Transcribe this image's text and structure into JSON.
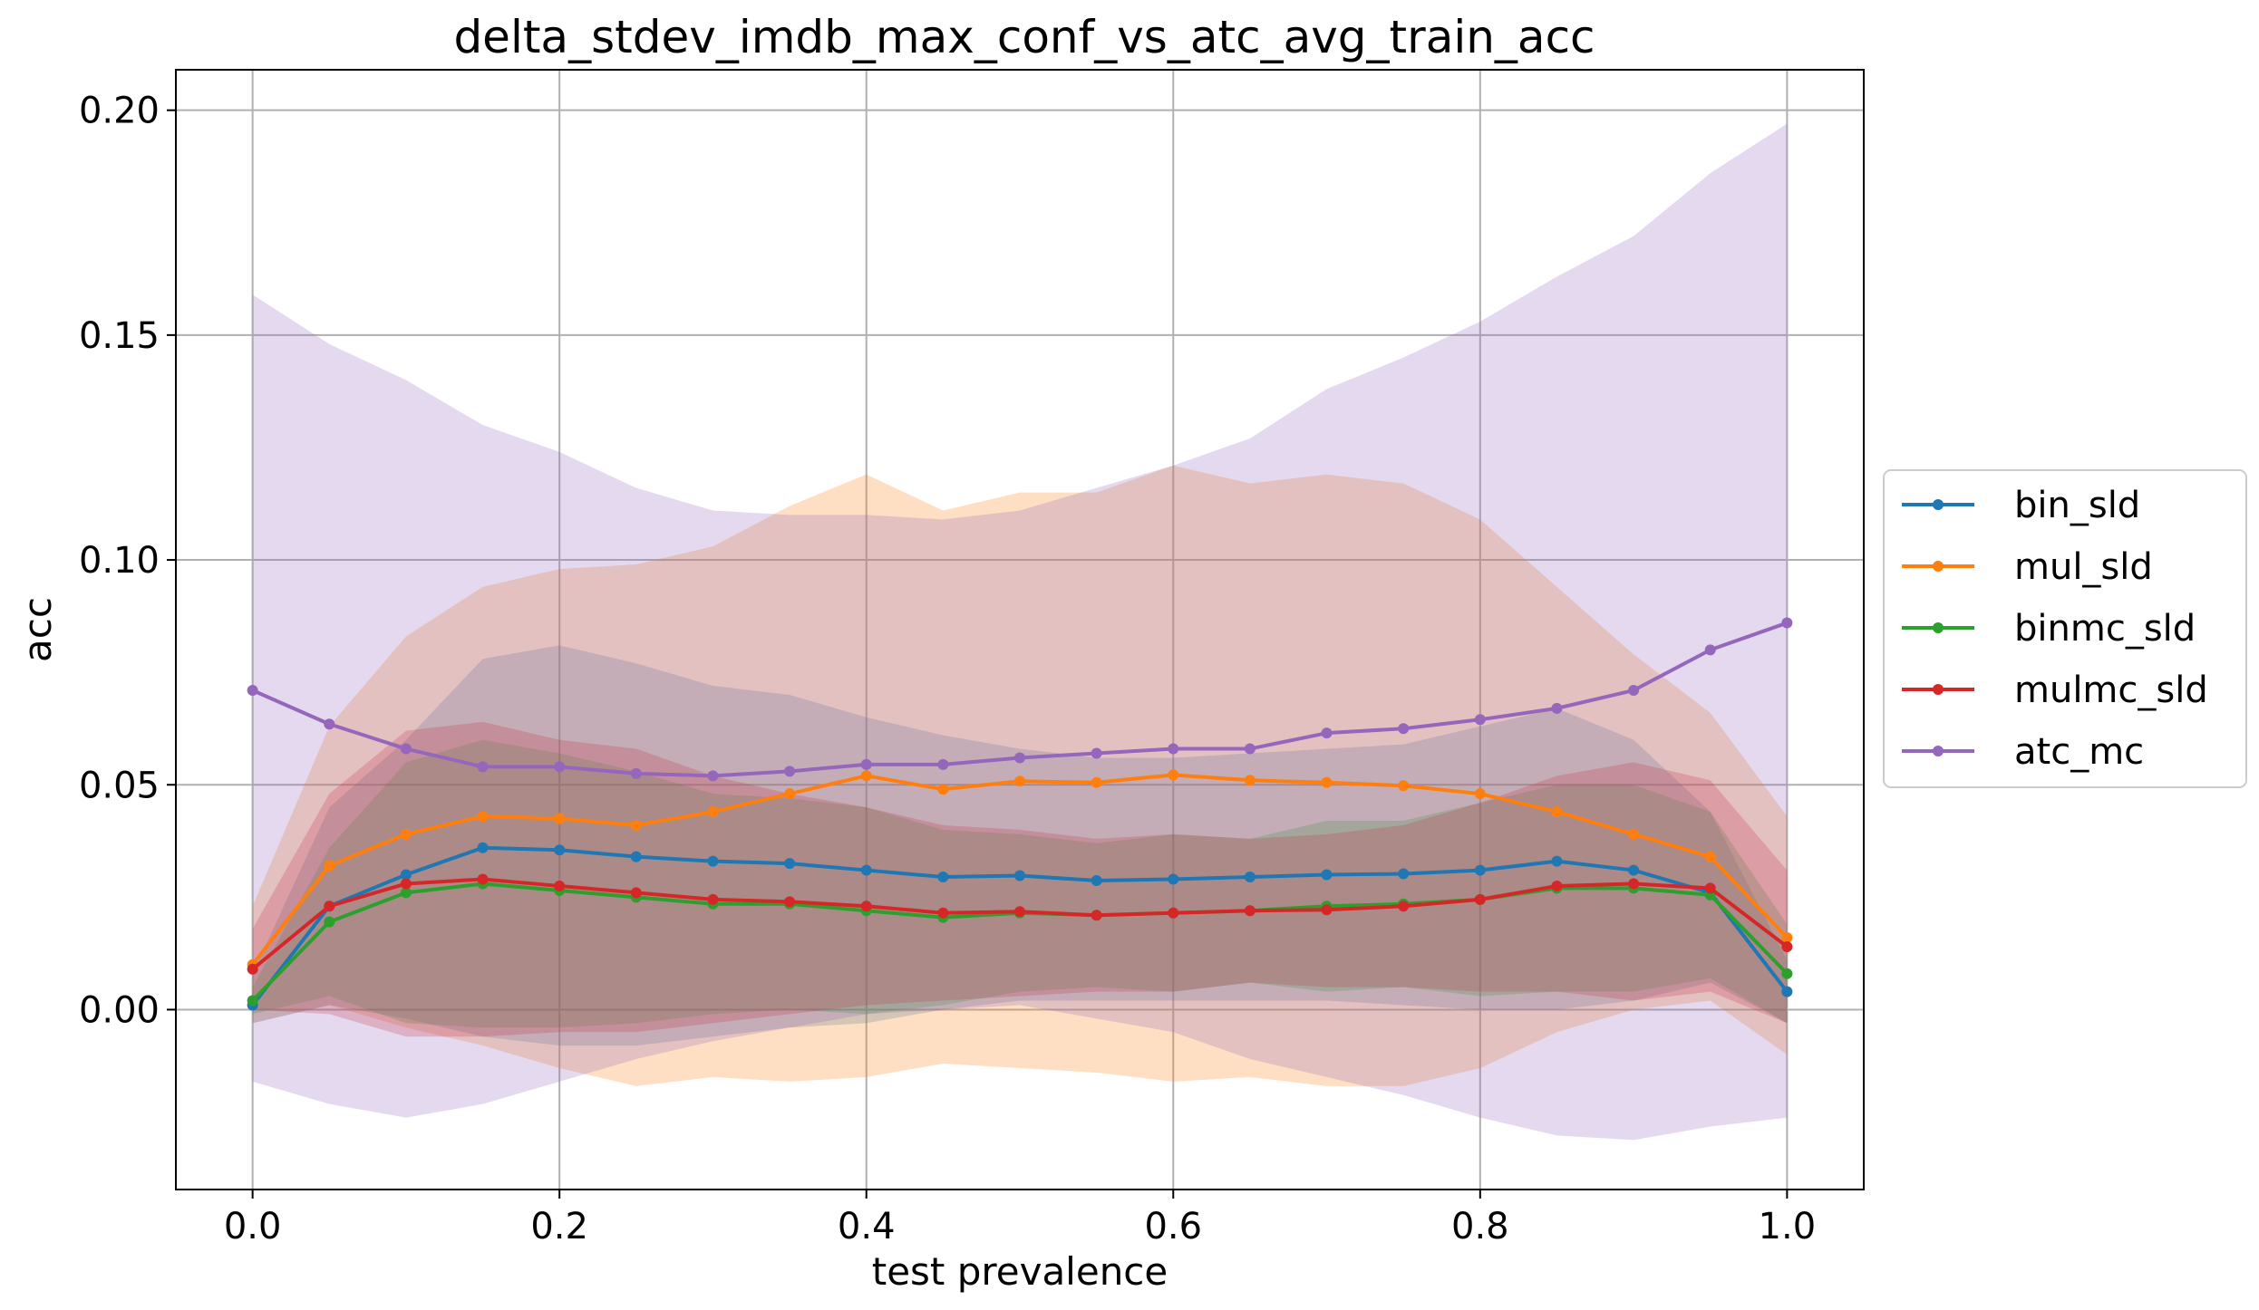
{
  "chart_data": {
    "type": "line",
    "title": "delta_stdev_imdb_max_conf_vs_atc_avg_train_acc",
    "xlabel": "test prevalence",
    "ylabel": "acc",
    "xlim": [
      -0.05,
      1.05
    ],
    "ylim": [
      -0.04,
      0.209
    ],
    "xticks": [
      0.0,
      0.2,
      0.4,
      0.6,
      0.8,
      1.0
    ],
    "xtick_labels": [
      "0.0",
      "0.2",
      "0.4",
      "0.6",
      "0.8",
      "1.0"
    ],
    "yticks": [
      0.0,
      0.05,
      0.1,
      0.15,
      0.2
    ],
    "ytick_labels": [
      "0.00",
      "0.05",
      "0.10",
      "0.15",
      "0.20"
    ],
    "grid": true,
    "legend_position": "outside-right",
    "x": [
      0.0,
      0.05,
      0.1,
      0.15,
      0.2,
      0.25,
      0.3,
      0.35,
      0.4,
      0.45,
      0.5,
      0.55,
      0.6,
      0.65,
      0.7,
      0.75,
      0.8,
      0.85,
      0.9,
      0.95,
      1.0
    ],
    "series": [
      {
        "name": "bin_sld",
        "color": "#1f77b4",
        "values": [
          0.001,
          0.023,
          0.03,
          0.036,
          0.0355,
          0.034,
          0.033,
          0.0325,
          0.031,
          0.0295,
          0.0298,
          0.0287,
          0.029,
          0.0295,
          0.03,
          0.0302,
          0.031,
          0.033,
          0.031,
          0.026,
          0.004
        ],
        "upper": [
          0.008,
          0.045,
          0.06,
          0.078,
          0.081,
          0.077,
          0.072,
          0.07,
          0.065,
          0.061,
          0.058,
          0.056,
          0.056,
          0.057,
          0.058,
          0.059,
          0.063,
          0.067,
          0.06,
          0.044,
          0.011
        ],
        "lower": [
          -0.003,
          0.001,
          -0.002,
          -0.006,
          -0.008,
          -0.008,
          -0.006,
          -0.004,
          -0.003,
          0.0,
          0.002,
          0.002,
          0.002,
          0.002,
          0.002,
          0.001,
          0.0,
          0.0,
          0.002,
          0.006,
          -0.003
        ]
      },
      {
        "name": "mul_sld",
        "color": "#ff7f0e",
        "values": [
          0.01,
          0.032,
          0.039,
          0.043,
          0.0425,
          0.041,
          0.044,
          0.048,
          0.052,
          0.049,
          0.0508,
          0.0505,
          0.0522,
          0.051,
          0.0505,
          0.0498,
          0.048,
          0.044,
          0.039,
          0.034,
          0.016
        ],
        "upper": [
          0.023,
          0.063,
          0.083,
          0.094,
          0.098,
          0.099,
          0.103,
          0.112,
          0.119,
          0.111,
          0.115,
          0.115,
          0.121,
          0.117,
          0.119,
          0.117,
          0.109,
          0.094,
          0.079,
          0.066,
          0.043
        ],
        "lower": [
          -0.003,
          0.001,
          -0.004,
          -0.008,
          -0.013,
          -0.017,
          -0.015,
          -0.016,
          -0.015,
          -0.012,
          -0.013,
          -0.014,
          -0.016,
          -0.015,
          -0.017,
          -0.017,
          -0.013,
          -0.005,
          0.0,
          0.002,
          -0.01
        ]
      },
      {
        "name": "binmc_sld",
        "color": "#2ca02c",
        "values": [
          0.002,
          0.0195,
          0.026,
          0.028,
          0.0265,
          0.025,
          0.0235,
          0.0235,
          0.022,
          0.0205,
          0.0215,
          0.021,
          0.0215,
          0.022,
          0.023,
          0.0235,
          0.0245,
          0.027,
          0.027,
          0.0255,
          0.008
        ],
        "upper": [
          0.005,
          0.036,
          0.055,
          0.06,
          0.057,
          0.053,
          0.048,
          0.047,
          0.045,
          0.04,
          0.039,
          0.037,
          0.039,
          0.038,
          0.042,
          0.042,
          0.046,
          0.05,
          0.05,
          0.044,
          0.019
        ],
        "lower": [
          -0.001,
          0.003,
          -0.003,
          -0.004,
          -0.004,
          -0.003,
          -0.001,
          0.0,
          -0.001,
          0.001,
          0.004,
          0.005,
          0.004,
          0.006,
          0.004,
          0.005,
          0.003,
          0.004,
          0.004,
          0.007,
          -0.003
        ]
      },
      {
        "name": "mulmc_sld",
        "color": "#d62728",
        "values": [
          0.009,
          0.023,
          0.028,
          0.029,
          0.0275,
          0.026,
          0.0245,
          0.024,
          0.023,
          0.0215,
          0.0218,
          0.021,
          0.0215,
          0.022,
          0.0222,
          0.023,
          0.0245,
          0.0275,
          0.028,
          0.027,
          0.014
        ],
        "upper": [
          0.018,
          0.048,
          0.062,
          0.064,
          0.06,
          0.058,
          0.052,
          0.048,
          0.045,
          0.041,
          0.04,
          0.038,
          0.039,
          0.038,
          0.039,
          0.041,
          0.046,
          0.052,
          0.055,
          0.051,
          0.031
        ],
        "lower": [
          0.0,
          -0.001,
          -0.006,
          -0.006,
          -0.005,
          -0.005,
          -0.003,
          -0.001,
          0.001,
          0.002,
          0.003,
          0.004,
          0.004,
          0.006,
          0.005,
          0.005,
          0.004,
          0.004,
          0.002,
          0.004,
          -0.003
        ]
      },
      {
        "name": "atc_mc",
        "color": "#9467bd",
        "values": [
          0.071,
          0.0635,
          0.058,
          0.054,
          0.054,
          0.0525,
          0.052,
          0.053,
          0.0545,
          0.0545,
          0.056,
          0.057,
          0.058,
          0.058,
          0.0615,
          0.0625,
          0.0645,
          0.067,
          0.071,
          0.08,
          0.086
        ],
        "upper": [
          0.159,
          0.148,
          0.14,
          0.13,
          0.124,
          0.116,
          0.111,
          0.11,
          0.11,
          0.109,
          0.111,
          0.116,
          0.121,
          0.127,
          0.138,
          0.145,
          0.153,
          0.163,
          0.172,
          0.186,
          0.197
        ],
        "lower": [
          -0.016,
          -0.021,
          -0.024,
          -0.021,
          -0.016,
          -0.011,
          -0.007,
          -0.004,
          -0.001,
          0.0,
          0.001,
          -0.002,
          -0.005,
          -0.011,
          -0.015,
          -0.019,
          -0.024,
          -0.028,
          -0.029,
          -0.026,
          -0.024
        ]
      }
    ]
  }
}
